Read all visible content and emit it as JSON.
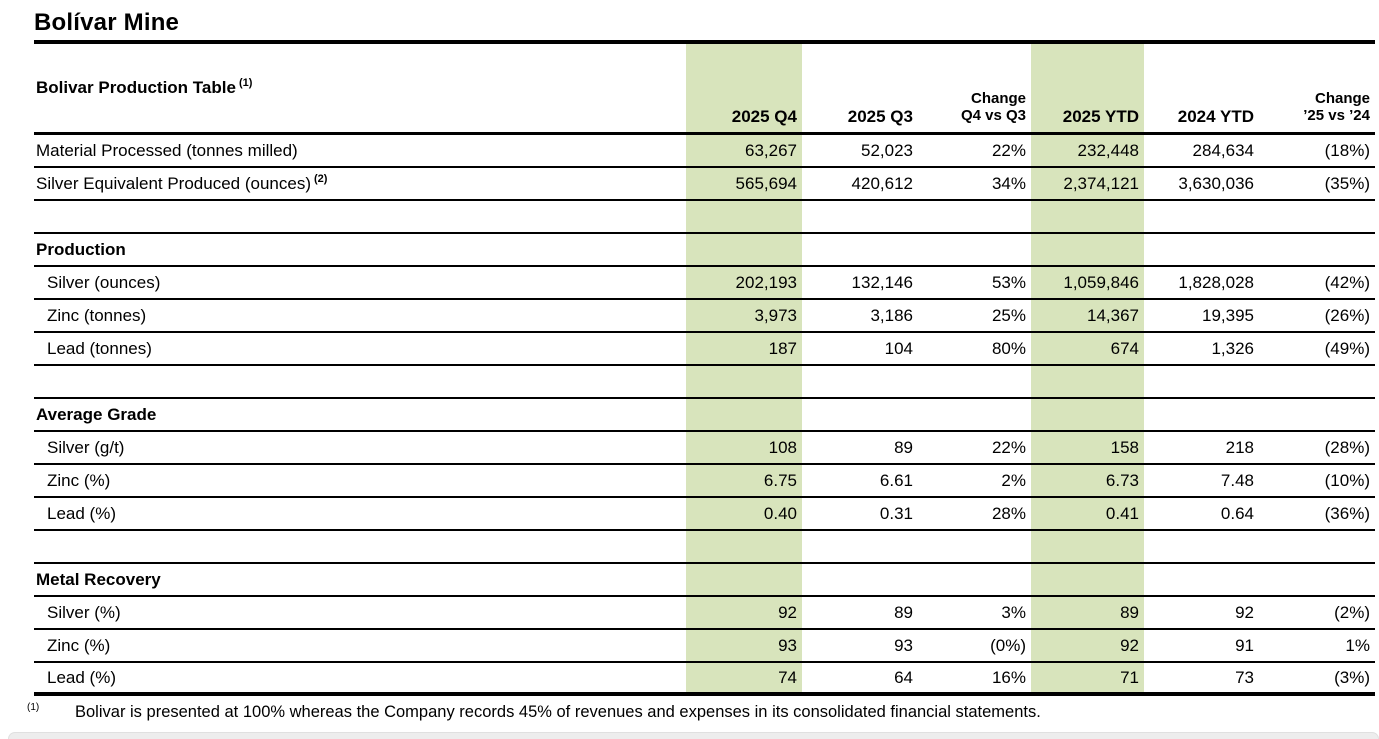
{
  "page": {
    "title": "Bolívar Mine",
    "table_title": "Bolivar Production Table",
    "table_title_sup": "(1)"
  },
  "colors": {
    "highlight_green": "#d8e4bc",
    "text": "#000000"
  },
  "table": {
    "headers": [
      {
        "line1": "",
        "line2": "2025 Q4",
        "highlight": true
      },
      {
        "line1": "",
        "line2": "2025 Q3",
        "highlight": false
      },
      {
        "line1": "Change",
        "line2": "Q4 vs Q3",
        "highlight": false
      },
      {
        "line1": "",
        "line2": "2025 YTD",
        "highlight": true
      },
      {
        "line1": "",
        "line2": "2024 YTD",
        "highlight": false
      },
      {
        "line1": "Change",
        "line2": "’25 vs ’24",
        "highlight": false
      }
    ],
    "rows": [
      {
        "type": "data",
        "label": "Material Processed (tonnes milled)",
        "sup": "",
        "indent": false,
        "values": [
          "63,267",
          "52,023",
          "22%",
          "232,448",
          "284,634",
          "(18%)"
        ]
      },
      {
        "type": "data",
        "label": "Silver Equivalent Produced (ounces)",
        "sup": "(2)",
        "indent": false,
        "values": [
          "565,694",
          "420,612",
          "34%",
          "2,374,121",
          "3,630,036",
          "(35%)"
        ]
      },
      {
        "type": "spacer",
        "label": "",
        "sup": "",
        "indent": false,
        "values": [
          "",
          "",
          "",
          "",
          "",
          ""
        ]
      },
      {
        "type": "section",
        "label": "Production",
        "sup": "",
        "indent": false,
        "values": [
          "",
          "",
          "",
          "",
          "",
          ""
        ]
      },
      {
        "type": "data",
        "label": "Silver (ounces)",
        "sup": "",
        "indent": true,
        "values": [
          "202,193",
          "132,146",
          "53%",
          "1,059,846",
          "1,828,028",
          "(42%)"
        ]
      },
      {
        "type": "data",
        "label": "Zinc (tonnes)",
        "sup": "",
        "indent": true,
        "values": [
          "3,973",
          "3,186",
          "25%",
          "14,367",
          "19,395",
          "(26%)"
        ]
      },
      {
        "type": "data",
        "label": "Lead (tonnes)",
        "sup": "",
        "indent": true,
        "values": [
          "187",
          "104",
          "80%",
          "674",
          "1,326",
          "(49%)"
        ]
      },
      {
        "type": "spacer",
        "label": "",
        "sup": "",
        "indent": false,
        "values": [
          "",
          "",
          "",
          "",
          "",
          ""
        ]
      },
      {
        "type": "section",
        "label": "Average Grade",
        "sup": "",
        "indent": false,
        "values": [
          "",
          "",
          "",
          "",
          "",
          ""
        ]
      },
      {
        "type": "data",
        "label": "Silver (g/t)",
        "sup": "",
        "indent": true,
        "values": [
          "108",
          "89",
          "22%",
          "158",
          "218",
          "(28%)"
        ]
      },
      {
        "type": "data",
        "label": "Zinc (%)",
        "sup": "",
        "indent": true,
        "values": [
          "6.75",
          "6.61",
          "2%",
          "6.73",
          "7.48",
          "(10%)"
        ]
      },
      {
        "type": "data",
        "label": "Lead (%)",
        "sup": "",
        "indent": true,
        "values": [
          "0.40",
          "0.31",
          "28%",
          "0.41",
          "0.64",
          "(36%)"
        ]
      },
      {
        "type": "spacer",
        "label": "",
        "sup": "",
        "indent": false,
        "values": [
          "",
          "",
          "",
          "",
          "",
          ""
        ]
      },
      {
        "type": "section",
        "label": "Metal Recovery",
        "sup": "",
        "indent": false,
        "values": [
          "",
          "",
          "",
          "",
          "",
          ""
        ]
      },
      {
        "type": "data",
        "label": "Silver (%)",
        "sup": "",
        "indent": true,
        "values": [
          "92",
          "89",
          "3%",
          "89",
          "92",
          "(2%)"
        ]
      },
      {
        "type": "data",
        "label": "Zinc (%)",
        "sup": "",
        "indent": true,
        "values": [
          "93",
          "93",
          "(0%)",
          "92",
          "91",
          "1%"
        ]
      },
      {
        "type": "data",
        "label": "Lead (%)",
        "sup": "",
        "indent": true,
        "last": true,
        "values": [
          "74",
          "64",
          "16%",
          "71",
          "73",
          "(3%)"
        ]
      }
    ]
  },
  "footnote": {
    "ref": "(1)",
    "text": "Bolivar is presented at 100% whereas the Company records 45% of revenues and expenses in its consolidated financial statements."
  }
}
